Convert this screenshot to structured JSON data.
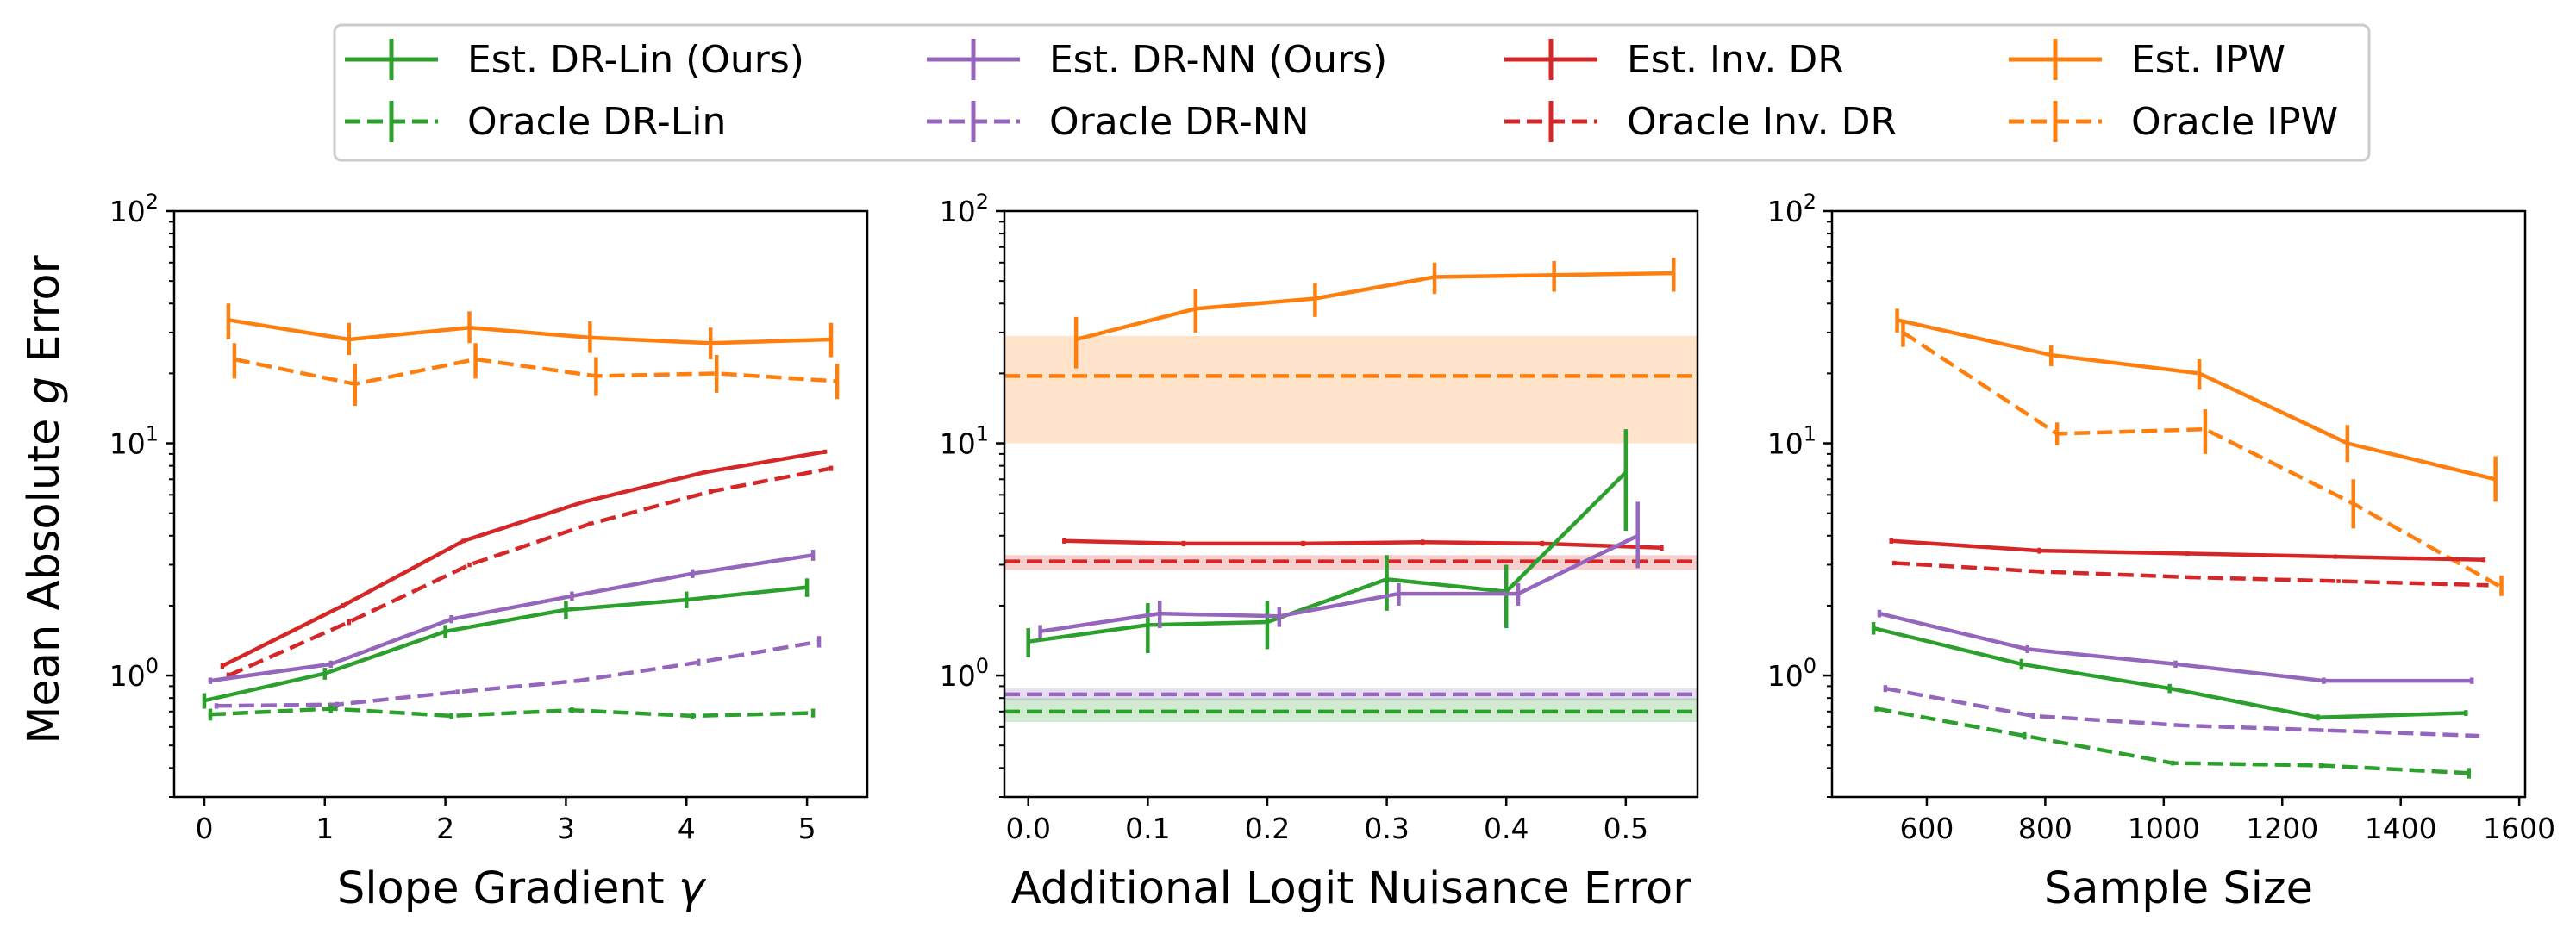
{
  "legend": [
    {
      "label": "Est. DR-Lin (Ours)",
      "color": "#2ca02c",
      "dashed": false
    },
    {
      "label": "Oracle DR-Lin",
      "color": "#2ca02c",
      "dashed": true
    },
    {
      "label": "Est. DR-NN (Ours)",
      "color": "#9467bd",
      "dashed": false
    },
    {
      "label": "Oracle DR-NN",
      "color": "#9467bd",
      "dashed": true
    },
    {
      "label": "Est. Inv. DR",
      "color": "#d62728",
      "dashed": false
    },
    {
      "label": "Oracle Inv. DR",
      "color": "#d62728",
      "dashed": true
    },
    {
      "label": "Est. IPW",
      "color": "#ff7f0e",
      "dashed": false
    },
    {
      "label": "Oracle IPW",
      "color": "#ff7f0e",
      "dashed": true
    }
  ],
  "y_axis": {
    "label_prefix": "Mean Absolute ",
    "label_var": "g",
    "label_suffix": " Error",
    "scale": "log",
    "ylim": [
      0.3,
      100
    ],
    "tick_base": "10",
    "tick_exponents": [
      "0",
      "1",
      "2"
    ]
  },
  "chart_data": [
    {
      "type": "line",
      "xlabel_text": "Slope Gradient ",
      "xlabel_var": "γ",
      "xlim": [
        -0.25,
        5.5
      ],
      "xticks": [
        0,
        1,
        2,
        3,
        4,
        5
      ],
      "xtick_labels": [
        "0",
        "1",
        "2",
        "3",
        "4",
        "5"
      ],
      "series": [
        {
          "name": "Est. IPW",
          "color": "#ff7f0e",
          "dashed": false,
          "x": [
            0.2,
            1.2,
            2.2,
            3.2,
            4.2,
            5.2
          ],
          "values": [
            34,
            28,
            31.5,
            28.5,
            27,
            28
          ],
          "err_lo": [
            28,
            24,
            27,
            24.5,
            23,
            23.5
          ],
          "err_hi": [
            40,
            33,
            37,
            33.5,
            31.5,
            33
          ]
        },
        {
          "name": "Oracle IPW",
          "color": "#ff7f0e",
          "dashed": true,
          "x": [
            0.25,
            1.25,
            2.25,
            3.25,
            4.25,
            5.25
          ],
          "values": [
            23,
            18,
            23,
            19.5,
            20,
            18.5
          ],
          "err_lo": [
            19,
            14.5,
            19,
            16,
            16.5,
            15.5
          ],
          "err_hi": [
            27,
            22,
            27,
            23.5,
            24,
            22
          ]
        },
        {
          "name": "Est. Inv. DR",
          "color": "#d62728",
          "dashed": false,
          "x": [
            0.15,
            1.15,
            2.15,
            3.15,
            4.15,
            5.15
          ],
          "values": [
            1.1,
            2.0,
            3.8,
            5.6,
            7.5,
            9.2
          ],
          "err_lo": [
            1.07,
            1.95,
            3.72,
            5.5,
            7.35,
            9.0
          ],
          "err_hi": [
            1.13,
            2.05,
            3.88,
            5.7,
            7.65,
            9.4
          ]
        },
        {
          "name": "Oracle Inv. DR",
          "color": "#d62728",
          "dashed": true,
          "x": [
            0.2,
            1.2,
            2.2,
            3.2,
            4.2,
            5.2
          ],
          "values": [
            1.0,
            1.7,
            3.0,
            4.5,
            6.2,
            7.8
          ],
          "err_lo": [
            0.97,
            1.65,
            2.93,
            4.4,
            6.05,
            7.6
          ],
          "err_hi": [
            1.03,
            1.75,
            3.07,
            4.6,
            6.35,
            8.0
          ]
        },
        {
          "name": "Est. DR-NN (Ours)",
          "color": "#9467bd",
          "dashed": false,
          "x": [
            0.05,
            1.05,
            2.05,
            3.05,
            4.05,
            5.05
          ],
          "values": [
            0.95,
            1.12,
            1.75,
            2.2,
            2.75,
            3.3
          ],
          "err_lo": [
            0.92,
            1.08,
            1.68,
            2.1,
            2.63,
            3.12
          ],
          "err_hi": [
            0.98,
            1.16,
            1.82,
            2.3,
            2.87,
            3.48
          ]
        },
        {
          "name": "Est. DR-Lin (Ours)",
          "color": "#2ca02c",
          "dashed": false,
          "x": [
            0,
            1,
            2,
            3,
            4,
            5
          ],
          "values": [
            0.78,
            1.02,
            1.55,
            1.92,
            2.12,
            2.4
          ],
          "err_lo": [
            0.72,
            0.96,
            1.45,
            1.75,
            1.95,
            2.18
          ],
          "err_hi": [
            0.84,
            1.08,
            1.65,
            2.1,
            2.3,
            2.62
          ]
        },
        {
          "name": "Oracle DR-NN",
          "color": "#9467bd",
          "dashed": true,
          "x": [
            0.1,
            1.1,
            2.1,
            3.1,
            4.1,
            5.1
          ],
          "values": [
            0.74,
            0.75,
            0.85,
            0.95,
            1.14,
            1.4
          ],
          "err_lo": [
            0.72,
            0.73,
            0.83,
            0.93,
            1.1,
            1.32
          ],
          "err_hi": [
            0.76,
            0.77,
            0.87,
            0.97,
            1.18,
            1.48
          ]
        },
        {
          "name": "Oracle DR-Lin",
          "color": "#2ca02c",
          "dashed": true,
          "x": [
            0.05,
            1.05,
            2.05,
            3.05,
            4.05,
            5.05
          ],
          "values": [
            0.68,
            0.72,
            0.67,
            0.71,
            0.67,
            0.69
          ],
          "err_lo": [
            0.64,
            0.69,
            0.65,
            0.69,
            0.65,
            0.66
          ],
          "err_hi": [
            0.72,
            0.75,
            0.69,
            0.73,
            0.69,
            0.72
          ]
        }
      ],
      "bands": []
    },
    {
      "type": "line",
      "xlabel_text": "Additional Logit Nuisance Error",
      "xlabel_var": "",
      "xlim": [
        -0.02,
        0.56
      ],
      "xticks": [
        0,
        0.1,
        0.2,
        0.3,
        0.4,
        0.5
      ],
      "xtick_labels": [
        "0.0",
        "0.1",
        "0.2",
        "0.3",
        "0.4",
        "0.5"
      ],
      "series": [
        {
          "name": "Est. IPW",
          "color": "#ff7f0e",
          "dashed": false,
          "x": [
            0.04,
            0.14,
            0.24,
            0.34,
            0.44,
            0.54
          ],
          "values": [
            28,
            38,
            42,
            52,
            53,
            54
          ],
          "err_lo": [
            21,
            30,
            35,
            44,
            45,
            45
          ],
          "err_hi": [
            35,
            46,
            49,
            60,
            61,
            63
          ]
        },
        {
          "name": "Est. Inv. DR",
          "color": "#d62728",
          "dashed": false,
          "x": [
            0.03,
            0.13,
            0.23,
            0.33,
            0.43,
            0.53
          ],
          "values": [
            3.8,
            3.7,
            3.7,
            3.75,
            3.7,
            3.55
          ],
          "err_lo": [
            3.7,
            3.6,
            3.6,
            3.65,
            3.6,
            3.45
          ],
          "err_hi": [
            3.9,
            3.8,
            3.8,
            3.85,
            3.8,
            3.65
          ]
        },
        {
          "name": "Est. DR-Lin (Ours)",
          "color": "#2ca02c",
          "dashed": false,
          "x": [
            0,
            0.1,
            0.2,
            0.3,
            0.4,
            0.5
          ],
          "values": [
            1.4,
            1.65,
            1.7,
            2.6,
            2.3,
            7.5
          ],
          "err_lo": [
            1.2,
            1.25,
            1.3,
            1.9,
            1.6,
            4.2
          ],
          "err_hi": [
            1.6,
            2.05,
            2.1,
            3.3,
            3.0,
            11.5
          ]
        },
        {
          "name": "Est. DR-NN (Ours)",
          "color": "#9467bd",
          "dashed": false,
          "x": [
            0.01,
            0.11,
            0.21,
            0.31,
            0.41,
            0.51
          ],
          "values": [
            1.55,
            1.85,
            1.8,
            2.25,
            2.25,
            4.0
          ],
          "err_lo": [
            1.45,
            1.6,
            1.62,
            2.0,
            2.0,
            2.9
          ],
          "err_hi": [
            1.65,
            2.1,
            1.98,
            2.5,
            2.5,
            5.6
          ]
        }
      ],
      "bands": [
        {
          "name": "Oracle IPW",
          "color": "#ff7f0e",
          "value": 19.5,
          "lo": 10,
          "hi": 29
        },
        {
          "name": "Oracle Inv. DR",
          "color": "#d62728",
          "value": 3.1,
          "lo": 2.85,
          "hi": 3.3
        },
        {
          "name": "Oracle DR-NN",
          "color": "#9467bd",
          "value": 0.83,
          "lo": 0.78,
          "hi": 0.88
        },
        {
          "name": "Oracle DR-Lin",
          "color": "#2ca02c",
          "value": 0.7,
          "lo": 0.63,
          "hi": 0.8
        }
      ]
    },
    {
      "type": "line",
      "xlabel_text": "Sample Size",
      "xlabel_var": "",
      "xlim": [
        440,
        1610
      ],
      "xticks": [
        600,
        800,
        1000,
        1200,
        1400,
        1600
      ],
      "xtick_labels": [
        "600",
        "800",
        "1000",
        "1200",
        "1400",
        "1600"
      ],
      "series": [
        {
          "name": "Est. IPW",
          "color": "#ff7f0e",
          "dashed": false,
          "x": [
            550,
            810,
            1060,
            1310,
            1560
          ],
          "values": [
            34,
            24,
            20,
            10,
            7
          ],
          "err_lo": [
            30,
            21.5,
            17,
            8.3,
            5.6
          ],
          "err_hi": [
            38,
            26.5,
            23,
            12,
            8.8
          ]
        },
        {
          "name": "Oracle IPW",
          "color": "#ff7f0e",
          "dashed": true,
          "x": [
            560,
            820,
            1070,
            1320,
            1570
          ],
          "values": [
            30,
            11,
            11.5,
            5.5,
            2.4
          ],
          "err_lo": [
            26,
            9.8,
            9,
            4.3,
            2.2
          ],
          "err_hi": [
            34,
            12.3,
            14,
            7,
            2.7
          ]
        },
        {
          "name": "Est. Inv. DR",
          "color": "#d62728",
          "dashed": false,
          "x": [
            540,
            790,
            1040,
            1290,
            1540
          ],
          "values": [
            3.8,
            3.45,
            3.35,
            3.25,
            3.15
          ],
          "err_lo": [
            3.7,
            3.35,
            3.28,
            3.18,
            3.08
          ],
          "err_hi": [
            3.9,
            3.55,
            3.42,
            3.32,
            3.22
          ]
        },
        {
          "name": "Oracle Inv. DR",
          "color": "#d62728",
          "dashed": true,
          "x": [
            545,
            795,
            1045,
            1295,
            1545
          ],
          "values": [
            3.05,
            2.8,
            2.65,
            2.55,
            2.45
          ],
          "err_lo": [
            2.98,
            2.74,
            2.6,
            2.5,
            2.4
          ],
          "err_hi": [
            3.12,
            2.86,
            2.7,
            2.6,
            2.5
          ]
        },
        {
          "name": "Est. DR-NN (Ours)",
          "color": "#9467bd",
          "dashed": false,
          "x": [
            520,
            770,
            1020,
            1270,
            1520
          ],
          "values": [
            1.85,
            1.3,
            1.12,
            0.95,
            0.95
          ],
          "err_lo": [
            1.78,
            1.25,
            1.08,
            0.92,
            0.92
          ],
          "err_hi": [
            1.92,
            1.35,
            1.16,
            0.98,
            0.98
          ]
        },
        {
          "name": "Est. DR-Lin (Ours)",
          "color": "#2ca02c",
          "dashed": false,
          "x": [
            510,
            760,
            1010,
            1260,
            1510
          ],
          "values": [
            1.6,
            1.12,
            0.88,
            0.66,
            0.69
          ],
          "err_lo": [
            1.5,
            1.06,
            0.84,
            0.64,
            0.67
          ],
          "err_hi": [
            1.7,
            1.18,
            0.92,
            0.68,
            0.71
          ]
        },
        {
          "name": "Oracle DR-NN",
          "color": "#9467bd",
          "dashed": true,
          "x": [
            530,
            780,
            1030,
            1280,
            1530
          ],
          "values": [
            0.88,
            0.67,
            0.61,
            0.58,
            0.55
          ],
          "err_lo": [
            0.85,
            0.65,
            0.6,
            0.57,
            0.54
          ],
          "err_hi": [
            0.91,
            0.69,
            0.62,
            0.59,
            0.56
          ]
        },
        {
          "name": "Oracle DR-Lin",
          "color": "#2ca02c",
          "dashed": true,
          "x": [
            515,
            765,
            1015,
            1265,
            1515
          ],
          "values": [
            0.72,
            0.55,
            0.42,
            0.41,
            0.38
          ],
          "err_lo": [
            0.7,
            0.53,
            0.41,
            0.4,
            0.36
          ],
          "err_hi": [
            0.74,
            0.57,
            0.43,
            0.42,
            0.4
          ]
        }
      ],
      "bands": []
    }
  ]
}
